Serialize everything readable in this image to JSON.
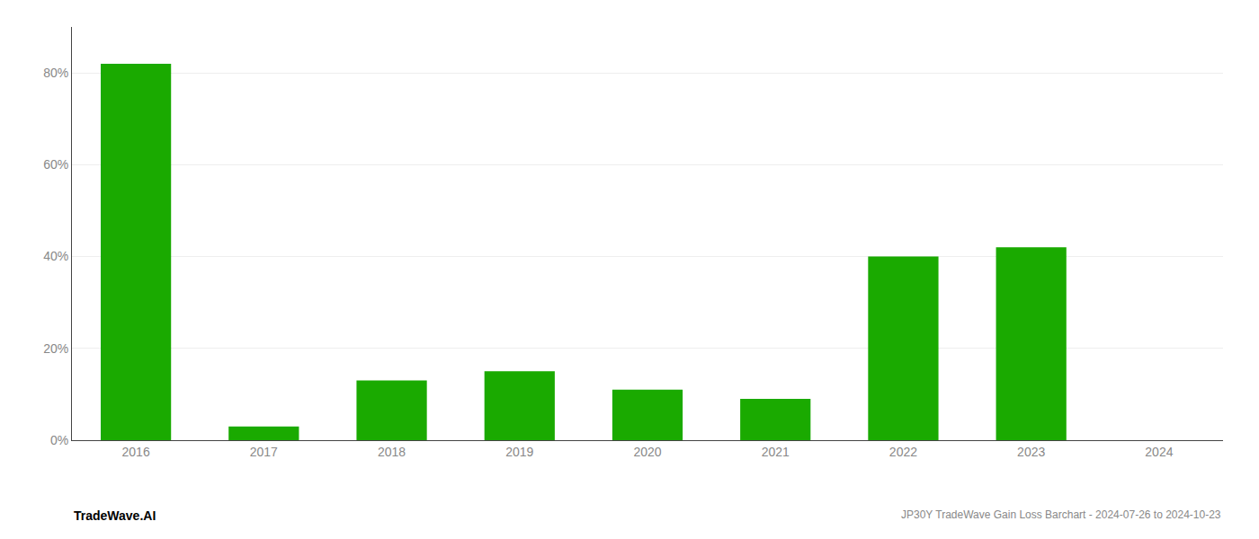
{
  "chart_data": {
    "type": "bar",
    "title": "JP30Y TradeWave Gain Loss Barchart - 2024-07-26 to 2024-10-23",
    "annotations": [
      "TradeWave.AI"
    ],
    "categories": [
      "2016",
      "2017",
      "2018",
      "2019",
      "2020",
      "2021",
      "2022",
      "2023",
      "2024"
    ],
    "values": [
      82,
      3,
      13,
      15,
      11,
      9,
      40,
      42,
      0
    ],
    "color": "#1aaa00",
    "ylim": [
      0,
      90
    ],
    "yticks": [
      {
        "value": 0,
        "label": "0%"
      },
      {
        "value": 20,
        "label": "20%"
      },
      {
        "value": 40,
        "label": "40%"
      },
      {
        "value": 60,
        "label": "60%"
      },
      {
        "value": 80,
        "label": "80%"
      }
    ],
    "grid": true
  }
}
